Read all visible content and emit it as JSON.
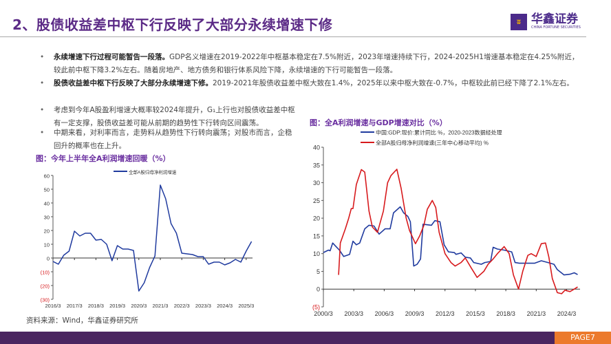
{
  "header": {
    "title": "2、股债收益差中枢下行反映了大部分永续增速下修",
    "logo": {
      "cn": "华鑫证券",
      "en": "CHINA FORTUNE SECURITIES"
    }
  },
  "bullets": [
    {
      "bold": "永续增速下行过程可能暂告一段落。",
      "text": "GDP名义增速在2019-2022年中枢基本稳定在7.5%附近，2023年增速持续下行，2024-2025H1增速基本稳定在4.25%附近，较此前中枢下降3.2%左右。随着房地产、地方债务和银行体系风险下降，永续增速的下行可能暂告一段落。"
    },
    {
      "bold": "股债收益差中枢下行反映了大部分永续增速下修。",
      "text": "2019-2021年股债收益差中枢大致在1.4%，2025年以来中枢大致在-0.7%，中枢较此前已经下降了2.1%左右。"
    },
    {
      "bold": "",
      "text": "考虑到今年A股盈利增速大概率较2024年提升，G₁上行也对股债收益差中枢有一定支撑，股债收益差可能从前期的趋势性下行转向区间震荡。"
    },
    {
      "bold": "",
      "text": "中期来看，对利率而言，走势料从趋势性下行转向震荡；对股市而言，企稳回升的概率也在上升。"
    }
  ],
  "source": "资料来源：Wind，华鑫证券研究所",
  "footer": {
    "page": "PAGE7"
  },
  "colors": {
    "title": "#5b2a86",
    "footer": "#4a2560",
    "page_badge": "#ec7a2c",
    "blue_series": "#1f3a9e",
    "red_series": "#d7191c",
    "negative_tick": "#d7191c"
  },
  "chart_data": [
    {
      "type": "line",
      "title": "图：今年上半年全A利润增速回暖（%）",
      "ylim": [
        -30,
        60
      ],
      "yticks": [
        "60",
        "50",
        "40",
        "30",
        "20",
        "10",
        "0",
        "(10)",
        "(20)",
        "(30)"
      ],
      "xticks": [
        "2016/3",
        "2017/3",
        "2018/3",
        "2019/3",
        "2020/3",
        "2021/3",
        "2022/3",
        "2023/3",
        "2024/3",
        "2025/3"
      ],
      "grid": false,
      "legend": "top-center",
      "series": [
        {
          "name": "全部A股归母净利润增速",
          "x": [
            "2016/3",
            "2016/6",
            "2016/9",
            "2016/12",
            "2017/3",
            "2017/6",
            "2017/9",
            "2017/12",
            "2018/3",
            "2018/6",
            "2018/9",
            "2018/12",
            "2019/3",
            "2019/6",
            "2019/9",
            "2019/12",
            "2020/3",
            "2020/6",
            "2020/9",
            "2020/12",
            "2021/3",
            "2021/6",
            "2021/9",
            "2021/12",
            "2022/3",
            "2022/6",
            "2022/9",
            "2022/12",
            "2023/3",
            "2023/6",
            "2023/9",
            "2023/12",
            "2024/3",
            "2024/6",
            "2024/9",
            "2024/12",
            "2025/3",
            "2025/6"
          ],
          "values": [
            -2.5,
            -4.5,
            2,
            5,
            19.5,
            16,
            18,
            18,
            13,
            13.5,
            10,
            -2,
            9,
            6.5,
            6.5,
            5.5,
            -24,
            -18,
            -7,
            1.5,
            53,
            43,
            25,
            18,
            3.5,
            3,
            2.5,
            1,
            1,
            -4.5,
            -3,
            -3,
            -5,
            -3.5,
            -1,
            -3,
            5,
            12
          ]
        }
      ]
    },
    {
      "type": "line",
      "title": "图：全A利润增速与GDP增速对比（%）",
      "ylim": [
        -5,
        40
      ],
      "yticks": [
        "40",
        "35",
        "30",
        "25",
        "20",
        "15",
        "10",
        "5",
        "0",
        "(5)"
      ],
      "xticks": [
        "2000/3",
        "2003/3",
        "2006/3",
        "2009/3",
        "2012/3",
        "2015/3",
        "2018/3",
        "2021/3",
        "2024/3"
      ],
      "grid": false,
      "legend": "top",
      "series": [
        {
          "name": "中国:GDP:现价:累计同比 %，2020-2023数据经处理",
          "x": [
            "2000/3",
            "2000/9",
            "2000/11",
            "2001/2",
            "2001/6",
            "2001/10",
            "2002/3",
            "2002/10",
            "2003/2",
            "2003/6",
            "2003/10",
            "2004/4",
            "2004/9",
            "2005/3",
            "2005/9",
            "2006/4",
            "2006/10",
            "2007/2",
            "2007/10",
            "2008/2",
            "2008/7",
            "2008/10",
            "2009/2",
            "2009/6",
            "2009/10",
            "2010/1",
            "2010/11",
            "2011/3",
            "2011/9",
            "2012/2",
            "2012/7",
            "2013/2",
            "2013/4",
            "2013/10",
            "2014/3",
            "2014/9",
            "2015/1",
            "2015/10",
            "2016/2",
            "2016/9",
            "2016/12",
            "2017/5",
            "2018/1",
            "2018/10",
            "2019/2",
            "2019/7",
            "2021/1",
            "2021/9",
            "2022/5",
            "2022/12",
            "2023/4",
            "2023/12",
            "2024/7",
            "2024/12",
            "2025/4"
          ],
          "values": [
            10.3,
            11,
            10.8,
            13,
            12,
            11,
            9.2,
            9.8,
            13.5,
            12.5,
            13,
            17,
            18,
            17.8,
            15.5,
            17,
            17,
            21.5,
            23.2,
            21.5,
            20.5,
            19,
            6.5,
            7,
            8.5,
            18.3,
            18,
            19.3,
            19,
            12.5,
            10.5,
            10.3,
            9.8,
            10.2,
            9,
            8.8,
            7.5,
            7,
            7.5,
            7.8,
            11.8,
            11.3,
            11,
            10.5,
            7.5,
            7.3,
            7.3,
            8,
            7.5,
            7,
            5.5,
            4,
            4.2,
            4.6,
            4.1
          ]
        },
        {
          "name": "全部A股归母净利润增速(三年中心移动平均) %",
          "x": [
            "2001/9",
            "2001/11",
            "2002/5",
            "2002/9",
            "2002/12",
            "2003/2",
            "2003/6",
            "2003/12",
            "2004/4",
            "2004/9",
            "2005/1",
            "2005/7",
            "2006/2",
            "2006/7",
            "2006/11",
            "2007/6",
            "2007/11",
            "2008/5",
            "2008/9",
            "2009/4",
            "2009/9",
            "2010/2",
            "2010/6",
            "2010/12",
            "2011/4",
            "2011/8",
            "2012/3",
            "2012/10",
            "2013/3",
            "2013/10",
            "2014/3",
            "2014/10",
            "2015/5",
            "2016/1",
            "2016/6",
            "2016/12",
            "2017/5",
            "2018/1",
            "2018/7",
            "2018/12",
            "2019/6",
            "2019/11",
            "2020/5",
            "2020/9",
            "2021/3",
            "2021/9",
            "2022/2",
            "2022/6",
            "2022/10",
            "2023/4",
            "2023/9",
            "2024/1",
            "2024/7",
            "2024/12",
            "2025/4"
          ],
          "values": [
            4,
            13,
            17,
            20,
            22.7,
            22.7,
            29.5,
            33.7,
            33,
            22,
            17.5,
            16,
            22,
            30,
            32,
            33.8,
            28.5,
            20,
            16.5,
            12.8,
            15,
            18,
            22.5,
            25,
            23,
            16,
            10,
            7.5,
            6.5,
            7.5,
            8.8,
            6,
            3.3,
            5,
            7,
            8.5,
            10,
            12,
            10,
            4,
            0,
            5,
            9.5,
            10,
            9.2,
            12.8,
            13,
            9,
            3,
            -1,
            -1.3,
            -0.3,
            -0.7,
            0,
            0.6
          ]
        }
      ]
    }
  ]
}
